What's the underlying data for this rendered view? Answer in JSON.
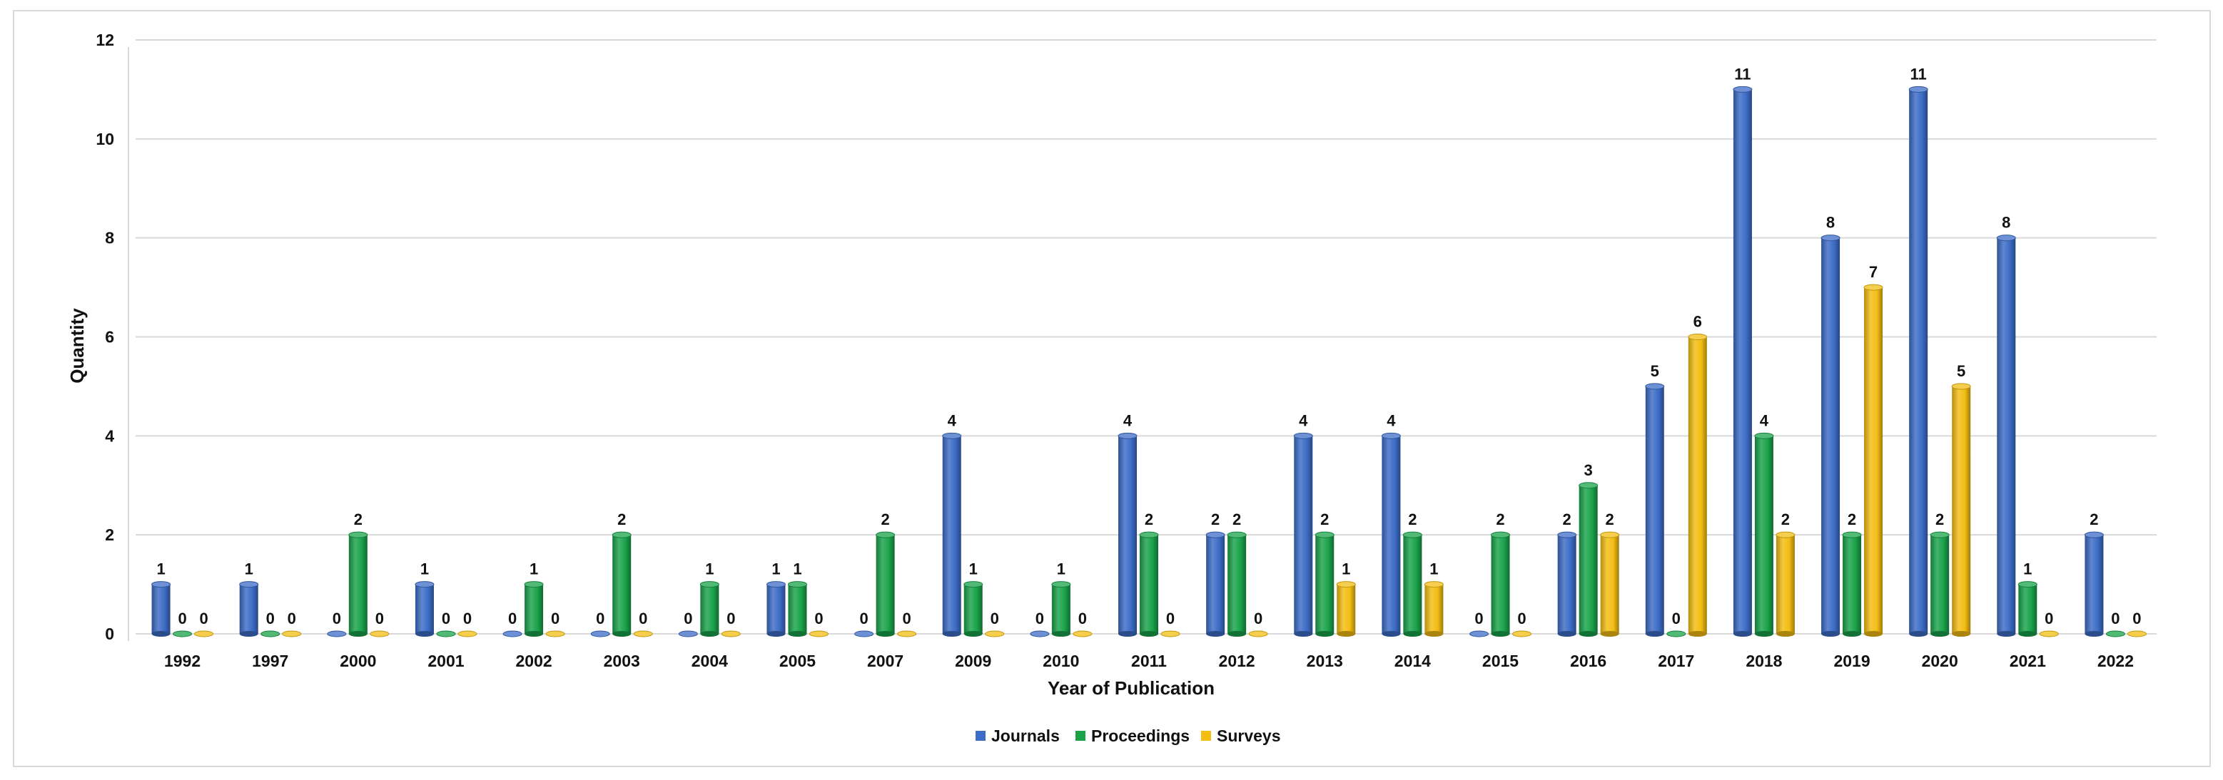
{
  "chart_data": {
    "type": "bar",
    "title": "",
    "xlabel": "Year of Publication",
    "ylabel": "Quantity",
    "ylim": [
      0,
      12
    ],
    "yticks": [
      0,
      2,
      4,
      6,
      8,
      10,
      12
    ],
    "grid": true,
    "legend_position": "bottom",
    "categories": [
      "1992",
      "1997",
      "2000",
      "2001",
      "2002",
      "2003",
      "2004",
      "2005",
      "2007",
      "2009",
      "2010",
      "2011",
      "2012",
      "2013",
      "2014",
      "2015",
      "2016",
      "2017",
      "2018",
      "2019",
      "2020",
      "2021",
      "2022"
    ],
    "series": [
      {
        "name": "Journals",
        "color": "#3c6cc6",
        "values": [
          1,
          1,
          0,
          1,
          0,
          0,
          0,
          1,
          0,
          4,
          0,
          4,
          2,
          4,
          4,
          0,
          2,
          5,
          11,
          8,
          11,
          8,
          2
        ]
      },
      {
        "name": "Proceedings",
        "color": "#1aa24a",
        "values": [
          0,
          0,
          2,
          0,
          1,
          2,
          1,
          1,
          2,
          1,
          1,
          2,
          2,
          2,
          2,
          2,
          3,
          0,
          4,
          2,
          2,
          1,
          0
        ]
      },
      {
        "name": "Surveys",
        "color": "#f3bd12",
        "values": [
          0,
          0,
          0,
          0,
          0,
          0,
          0,
          0,
          0,
          0,
          0,
          0,
          0,
          1,
          1,
          0,
          2,
          6,
          2,
          7,
          5,
          0,
          0
        ]
      }
    ]
  }
}
